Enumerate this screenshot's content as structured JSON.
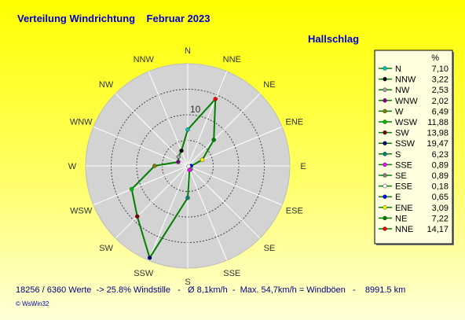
{
  "header": {
    "title": "Verteilung Windrichtung    Februar 2023",
    "station": "Hallschlag"
  },
  "chart_data": {
    "type": "radar",
    "directions": [
      "N",
      "NNE",
      "NE",
      "ENE",
      "E",
      "ESE",
      "SE",
      "SSE",
      "S",
      "SSW",
      "SW",
      "WSW",
      "W",
      "WNW",
      "NW",
      "NNW"
    ],
    "rlim": [
      0,
      20
    ],
    "ring_label": "10",
    "legend": {
      "unit_header": "%",
      "position": "right",
      "entries": [
        {
          "label": "N",
          "value": "7,10",
          "color": "#00c0c0"
        },
        {
          "label": "NNW",
          "value": "3,22",
          "color": "#000000"
        },
        {
          "label": "NW",
          "value": "2,53",
          "color": "#a0a0a0"
        },
        {
          "label": "WNW",
          "value": "2,02",
          "color": "#800080"
        },
        {
          "label": "W",
          "value": "6,49",
          "color": "#808000"
        },
        {
          "label": "WSW",
          "value": "11,88",
          "color": "#00c000"
        },
        {
          "label": "SW",
          "value": "13,98",
          "color": "#800000"
        },
        {
          "label": "SSW",
          "value": "19,47",
          "color": "#000080"
        },
        {
          "label": "S",
          "value": "6,23",
          "color": "#008080"
        },
        {
          "label": "SSE",
          "value": "0,89",
          "color": "#ff00ff"
        },
        {
          "label": "SE",
          "value": "0,89",
          "color": "#808080"
        },
        {
          "label": "ESE",
          "value": "0,18",
          "color": "#ffffff"
        },
        {
          "label": "E",
          "value": "0,65",
          "color": "#0000ff"
        },
        {
          "label": "ENE",
          "value": "3,09",
          "color": "#ffff00"
        },
        {
          "label": "NE",
          "value": "7,22",
          "color": "#008000"
        },
        {
          "label": "NNE",
          "value": "14,17",
          "color": "#ff0000"
        }
      ]
    },
    "values": {
      "N": 7.1,
      "NNE": 14.17,
      "NE": 7.22,
      "ENE": 3.09,
      "E": 0.65,
      "ESE": 0.18,
      "SE": 0.89,
      "SSE": 0.89,
      "S": 6.23,
      "SSW": 19.47,
      "SW": 13.98,
      "WSW": 11.88,
      "W": 6.49,
      "WNW": 2.02,
      "NW": 2.53,
      "NNW": 3.22
    },
    "line_color": "#008000",
    "disc_color": "#d3d3d3",
    "grid": true
  },
  "footer": {
    "stats": "18256 / 6360 Werte  -> 25.8% Windstille   -   Ø 8,1km/h  -  Max. 54,7km/h = Windböen   -    8991.5 km",
    "credit": "© WsWin32"
  }
}
